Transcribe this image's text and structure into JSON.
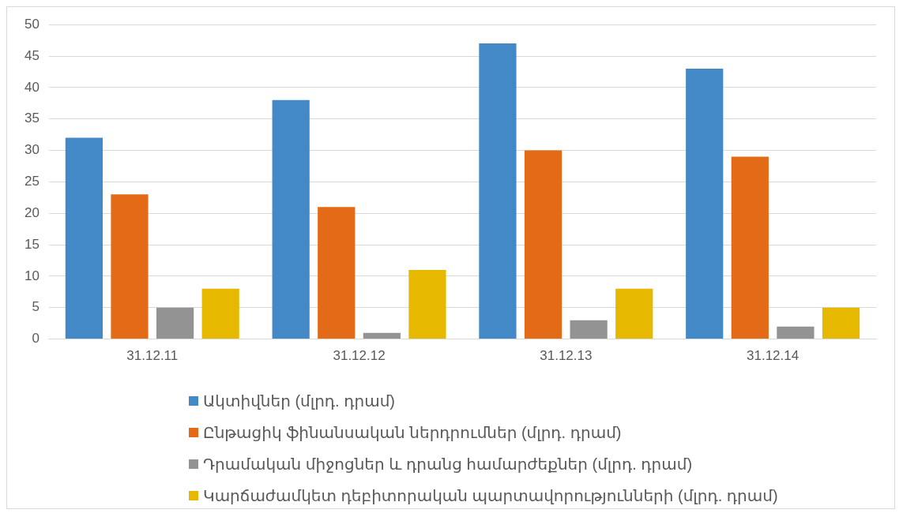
{
  "chart_data": {
    "type": "bar",
    "categories": [
      "31.12.11",
      "31.12.12",
      "31.12.13",
      "31.12.14"
    ],
    "series": [
      {
        "name": "Ակտիվներ (մլրդ. դրամ)",
        "color": "#4389c8",
        "values": [
          32,
          38,
          47,
          43
        ]
      },
      {
        "name": "Ընթացիկ ֆինանսական ներդրումներ (մլրդ. դրամ)",
        "color": "#e36b18",
        "values": [
          23,
          21,
          30,
          29
        ]
      },
      {
        "name": "Դրամական միջոցներ և դրանց համարժեքներ (մլրդ. դրամ)",
        "color": "#939393",
        "values": [
          5,
          1,
          3,
          2
        ]
      },
      {
        "name": "Կարճաժամկետ դեբիտորական պարտավորությունների (մլրդ. դրամ)",
        "color": "#e6b800",
        "values": [
          8,
          11,
          8,
          5
        ]
      }
    ],
    "ylim": [
      0,
      50
    ],
    "yticks": [
      0,
      5,
      10,
      15,
      20,
      25,
      30,
      35,
      40,
      45,
      50
    ],
    "grid": "y",
    "legend": "bottom"
  }
}
